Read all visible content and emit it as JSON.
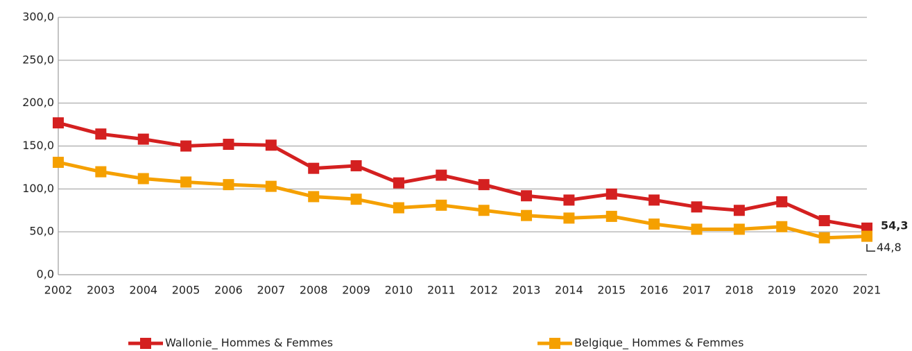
{
  "chart_data": {
    "type": "line",
    "categories": [
      "2002",
      "2003",
      "2004",
      "2005",
      "2006",
      "2007",
      "2008",
      "2009",
      "2010",
      "2011",
      "2012",
      "2013",
      "2014",
      "2015",
      "2016",
      "2017",
      "2018",
      "2019",
      "2020",
      "2021"
    ],
    "series": [
      {
        "name": "Wallonie_ Hommes & Femmes",
        "color": "#d42020",
        "values": [
          177,
          164,
          158,
          150,
          152,
          151,
          124,
          127,
          107,
          116,
          105,
          92,
          87,
          94,
          87,
          79,
          75,
          85,
          63,
          54.3
        ],
        "value_labels": [
          null,
          null,
          null,
          null,
          null,
          null,
          null,
          null,
          null,
          null,
          null,
          null,
          null,
          null,
          null,
          null,
          null,
          null,
          null,
          "54,3"
        ]
      },
      {
        "name": "Belgique_ Hommes & Femmes",
        "color": "#f5a000",
        "values": [
          131,
          120,
          112,
          108,
          105,
          103,
          91,
          88,
          78,
          81,
          75,
          69,
          66,
          68,
          59,
          53,
          53,
          56,
          43,
          44.8
        ],
        "value_labels": [
          null,
          null,
          null,
          null,
          null,
          null,
          null,
          null,
          null,
          null,
          null,
          null,
          null,
          null,
          null,
          null,
          null,
          null,
          null,
          "44,8"
        ]
      }
    ],
    "ylim": [
      0,
      300
    ],
    "yticks": [
      {
        "value": 0,
        "label": "0,0"
      },
      {
        "value": 50,
        "label": "50,0"
      },
      {
        "value": 100,
        "label": "100,0"
      },
      {
        "value": 150,
        "label": "150,0"
      },
      {
        "value": 200,
        "label": "200,0"
      },
      {
        "value": 250,
        "label": "250,0"
      },
      {
        "value": 300,
        "label": "300,0"
      }
    ],
    "grid": true,
    "legend": "bottom"
  }
}
